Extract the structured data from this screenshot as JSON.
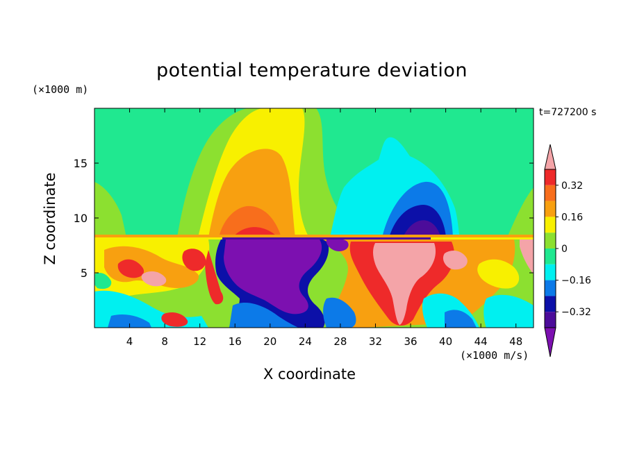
{
  "chart_data": {
    "type": "heatmap",
    "title": "potential temperature deviation",
    "xlabel": "X coordinate",
    "ylabel": "Z coordinate",
    "x_unit": "(×1000 m/s)",
    "y_unit": "(×1000 m)",
    "time_label": "t=727200 s",
    "xlim": [
      0,
      50
    ],
    "ylim": [
      0,
      20
    ],
    "x_ticks": [
      4,
      8,
      12,
      16,
      20,
      24,
      28,
      32,
      36,
      40,
      44,
      48
    ],
    "y_ticks": [
      5,
      10,
      15
    ],
    "colorbar": {
      "levels": [
        -0.4,
        -0.32,
        -0.24,
        -0.16,
        -0.08,
        0,
        0.08,
        0.16,
        0.24,
        0.32,
        0.4
      ],
      "labels": [
        "0.32",
        "0.16",
        "0",
        "−0.16",
        "−0.32"
      ],
      "label_values": [
        0.32,
        0.16,
        0,
        -0.16,
        -0.32
      ],
      "colors_top_to_bottom": [
        "#f4a4a8",
        "#ee2a2a",
        "#f86e1c",
        "#f8a010",
        "#f8f000",
        "#8ce030",
        "#20e890",
        "#00f0f0",
        "#0c7ae8",
        "#0c10a8",
        "#4c0c9a",
        "#7c10b0"
      ],
      "extend": "both"
    },
    "field_colors": {
      "above_strong_pos": "#f4a4a8",
      "pos_032": "#ee2a2a",
      "pos_024": "#f86e1c",
      "pos_016": "#f8a010",
      "pos_008": "#f8f000",
      "zero_pos": "#8ce030",
      "zero_neg": "#20e890",
      "neg_008": "#00f0f0",
      "neg_016": "#0c7ae8",
      "neg_024": "#0c10a8",
      "neg_032": "#4c0c9a",
      "below_strong_neg": "#7c10b0"
    }
  }
}
